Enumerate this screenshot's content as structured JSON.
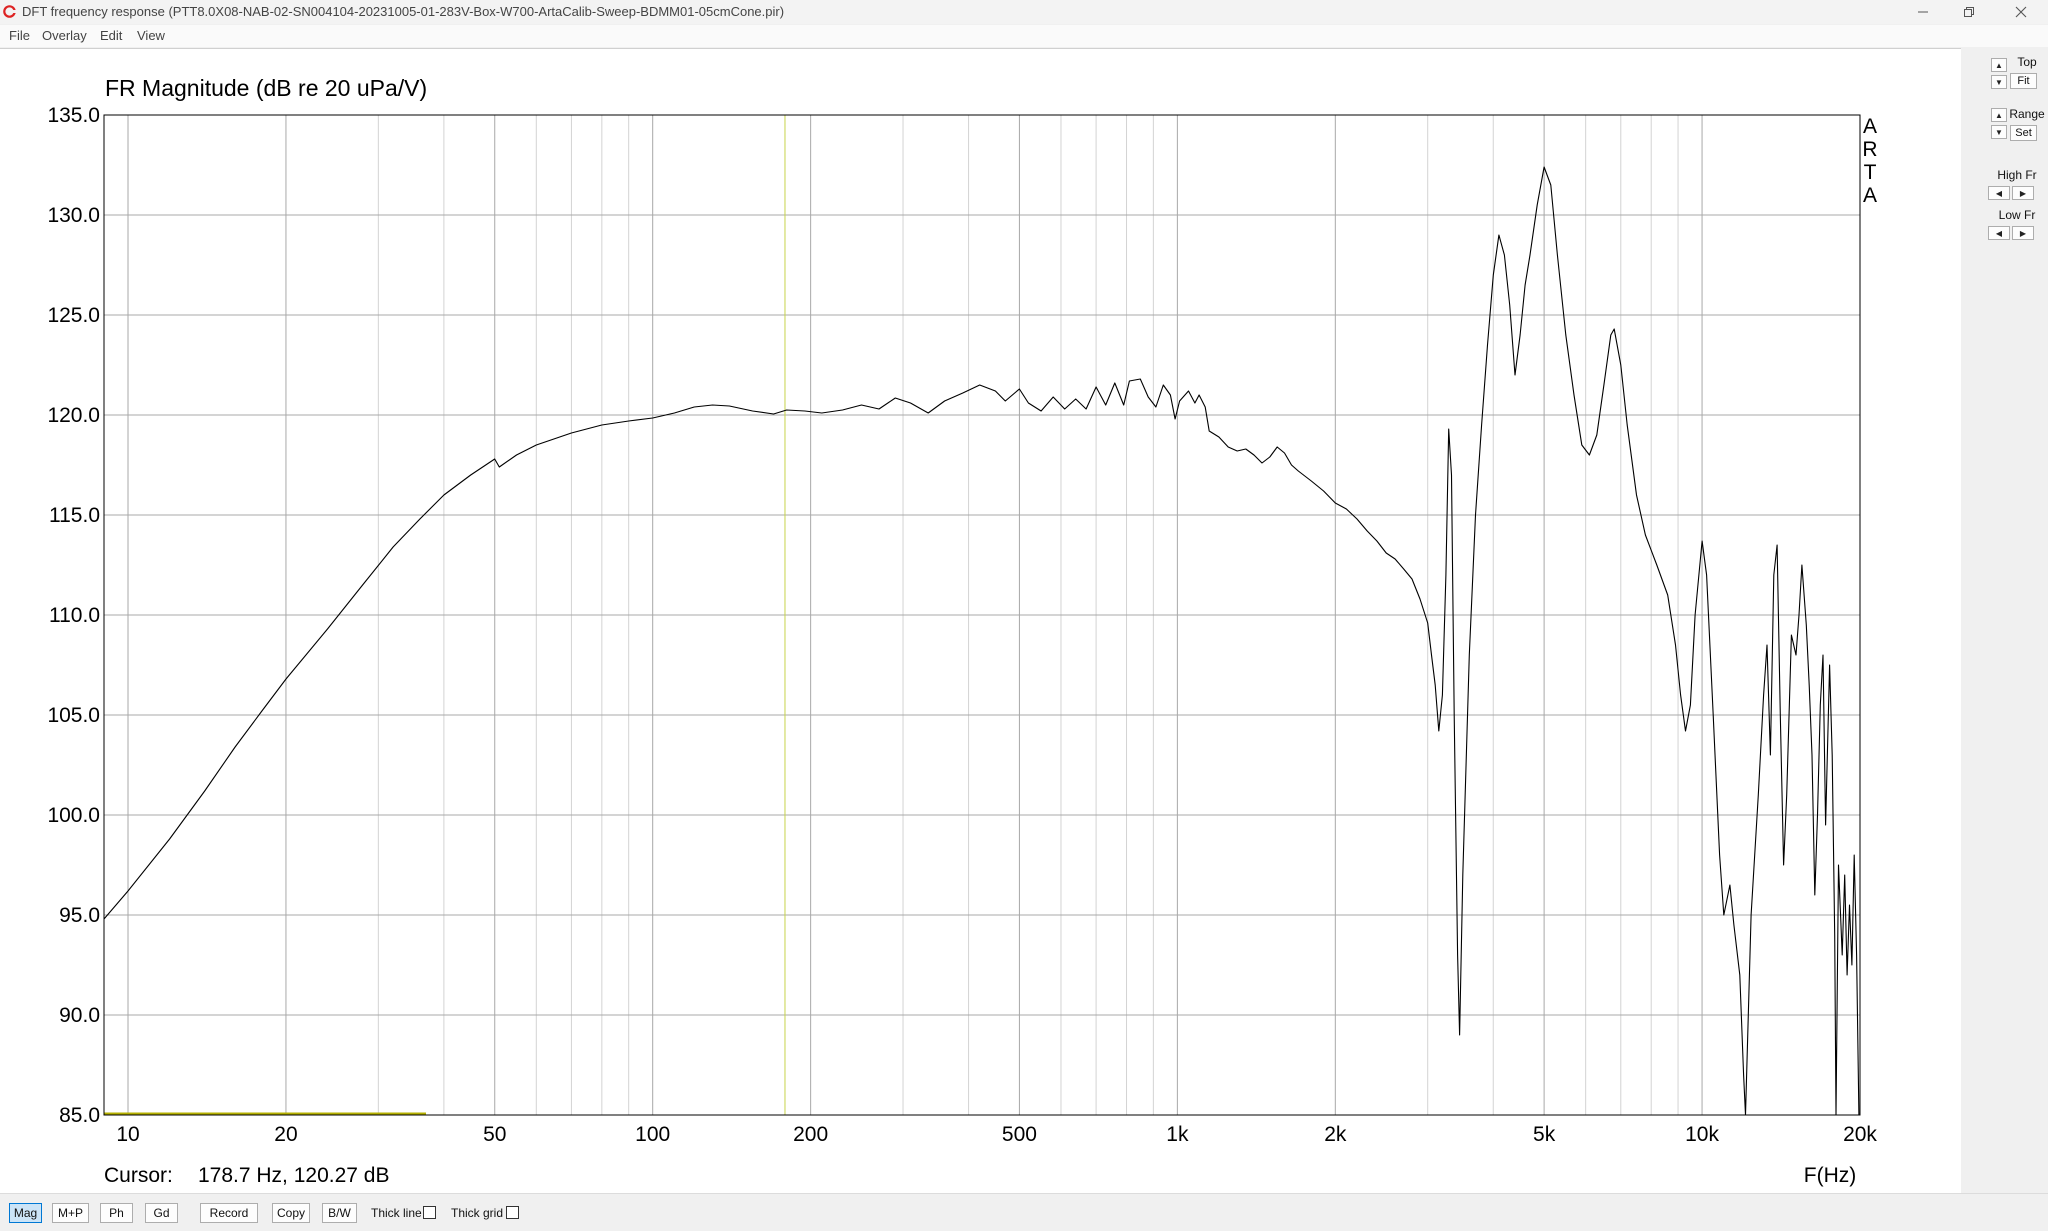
{
  "window": {
    "title": "DFT frequency response (PTT8.0X08-NAB-02-SN004104-20231005-01-283V-Box-W700-ArtaCalib-Sweep-BDMM01-05cmCone.pir)"
  },
  "menu": {
    "file": "File",
    "overlay": "Overlay",
    "edit": "Edit",
    "view": "View"
  },
  "plot": {
    "corner_label": "A\nR\nT\nA",
    "cursor_label": "Cursor:",
    "cursor_value": "178.7 Hz, 120.27 dB"
  },
  "side": {
    "top_label": "Top",
    "fit_label": "Fit",
    "range_label": "Range",
    "set_label": "Set",
    "high_fr_label": "High Fr",
    "low_fr_label": "Low Fr"
  },
  "toolbar": {
    "mag": "Mag",
    "mp": "M+P",
    "ph": "Ph",
    "gd": "Gd",
    "record": "Record",
    "copy": "Copy",
    "bw": "B/W",
    "thick_line": "Thick line",
    "thick_grid": "Thick grid"
  },
  "chart_data": {
    "type": "line",
    "title": "FR Magnitude (dB re 20 uPa/V)",
    "xlabel": "F(Hz)",
    "ylabel": "",
    "x_scale": "log",
    "xlim": [
      9,
      20000
    ],
    "ylim": [
      85,
      135
    ],
    "x_ticks": [
      10,
      20,
      50,
      100,
      200,
      500,
      1000,
      2000,
      5000,
      10000,
      20000
    ],
    "x_tick_labels": [
      "10",
      "20",
      "50",
      "100",
      "200",
      "500",
      "1k",
      "2k",
      "5k",
      "10k",
      "20k"
    ],
    "y_ticks": [
      "85.0",
      "90.0",
      "95.0",
      "100.0",
      "105.0",
      "110.0",
      "115.0",
      "120.0",
      "125.0",
      "130.0",
      "135.0"
    ],
    "grid": true,
    "cursor": {
      "freq_hz": 178.7,
      "level_db": 120.27
    },
    "series": [
      {
        "color": "#000000",
        "points": [
          [
            9,
            94.8
          ],
          [
            10,
            96.2
          ],
          [
            12,
            98.8
          ],
          [
            14,
            101.2
          ],
          [
            16,
            103.4
          ],
          [
            18,
            105.2
          ],
          [
            20,
            106.8
          ],
          [
            24,
            109.3
          ],
          [
            28,
            111.5
          ],
          [
            32,
            113.4
          ],
          [
            36,
            114.8
          ],
          [
            40,
            116.0
          ],
          [
            45,
            117.0
          ],
          [
            50,
            117.8
          ],
          [
            51,
            117.4
          ],
          [
            55,
            118.0
          ],
          [
            60,
            118.5
          ],
          [
            70,
            119.1
          ],
          [
            80,
            119.5
          ],
          [
            90,
            119.7
          ],
          [
            100,
            119.85
          ],
          [
            110,
            120.1
          ],
          [
            120,
            120.4
          ],
          [
            130,
            120.5
          ],
          [
            140,
            120.45
          ],
          [
            155,
            120.2
          ],
          [
            170,
            120.05
          ],
          [
            180,
            120.25
          ],
          [
            195,
            120.2
          ],
          [
            210,
            120.1
          ],
          [
            230,
            120.25
          ],
          [
            250,
            120.5
          ],
          [
            270,
            120.3
          ],
          [
            290,
            120.85
          ],
          [
            310,
            120.6
          ],
          [
            335,
            120.1
          ],
          [
            360,
            120.7
          ],
          [
            390,
            121.1
          ],
          [
            420,
            121.5
          ],
          [
            450,
            121.2
          ],
          [
            470,
            120.7
          ],
          [
            500,
            121.3
          ],
          [
            520,
            120.6
          ],
          [
            550,
            120.2
          ],
          [
            580,
            120.9
          ],
          [
            610,
            120.3
          ],
          [
            640,
            120.8
          ],
          [
            670,
            120.3
          ],
          [
            700,
            121.4
          ],
          [
            730,
            120.5
          ],
          [
            760,
            121.6
          ],
          [
            790,
            120.5
          ],
          [
            810,
            121.7
          ],
          [
            850,
            121.8
          ],
          [
            880,
            120.9
          ],
          [
            910,
            120.4
          ],
          [
            940,
            121.5
          ],
          [
            970,
            121.0
          ],
          [
            990,
            119.8
          ],
          [
            1010,
            120.7
          ],
          [
            1050,
            121.2
          ],
          [
            1080,
            120.6
          ],
          [
            1100,
            121.0
          ],
          [
            1130,
            120.4
          ],
          [
            1150,
            119.2
          ],
          [
            1200,
            118.9
          ],
          [
            1250,
            118.4
          ],
          [
            1300,
            118.2
          ],
          [
            1350,
            118.3
          ],
          [
            1400,
            118.0
          ],
          [
            1450,
            117.6
          ],
          [
            1500,
            117.9
          ],
          [
            1550,
            118.4
          ],
          [
            1600,
            118.1
          ],
          [
            1650,
            117.5
          ],
          [
            1700,
            117.2
          ],
          [
            1800,
            116.7
          ],
          [
            1900,
            116.2
          ],
          [
            2000,
            115.6
          ],
          [
            2100,
            115.3
          ],
          [
            2200,
            114.8
          ],
          [
            2300,
            114.2
          ],
          [
            2400,
            113.7
          ],
          [
            2500,
            113.1
          ],
          [
            2600,
            112.8
          ],
          [
            2700,
            112.3
          ],
          [
            2800,
            111.8
          ],
          [
            2900,
            110.8
          ],
          [
            3000,
            109.6
          ],
          [
            3050,
            108.0
          ],
          [
            3100,
            106.5
          ],
          [
            3150,
            104.2
          ],
          [
            3200,
            106.0
          ],
          [
            3250,
            112.0
          ],
          [
            3290,
            119.3
          ],
          [
            3330,
            117.0
          ],
          [
            3370,
            105.0
          ],
          [
            3420,
            93.0
          ],
          [
            3450,
            89.0
          ],
          [
            3500,
            97.0
          ],
          [
            3600,
            108.0
          ],
          [
            3700,
            115.0
          ],
          [
            3800,
            119.5
          ],
          [
            3900,
            123.5
          ],
          [
            4000,
            127.0
          ],
          [
            4100,
            129.0
          ],
          [
            4200,
            128.0
          ],
          [
            4300,
            125.5
          ],
          [
            4400,
            122.0
          ],
          [
            4500,
            124.0
          ],
          [
            4600,
            126.5
          ],
          [
            4700,
            128.0
          ],
          [
            4850,
            130.5
          ],
          [
            5000,
            132.4
          ],
          [
            5150,
            131.5
          ],
          [
            5300,
            128.0
          ],
          [
            5500,
            124.0
          ],
          [
            5700,
            121.0
          ],
          [
            5900,
            118.5
          ],
          [
            6100,
            118.0
          ],
          [
            6300,
            119.0
          ],
          [
            6500,
            121.5
          ],
          [
            6700,
            124.0
          ],
          [
            6800,
            124.3
          ],
          [
            7000,
            122.5
          ],
          [
            7200,
            119.5
          ],
          [
            7500,
            116.0
          ],
          [
            7800,
            114.0
          ],
          [
            8200,
            112.5
          ],
          [
            8600,
            111.0
          ],
          [
            8900,
            108.5
          ],
          [
            9100,
            106.0
          ],
          [
            9300,
            104.2
          ],
          [
            9500,
            105.5
          ],
          [
            9700,
            110.0
          ],
          [
            10000,
            113.7
          ],
          [
            10200,
            112.0
          ],
          [
            10500,
            105.0
          ],
          [
            10800,
            98.0
          ],
          [
            11000,
            95.0
          ],
          [
            11300,
            96.5
          ],
          [
            11500,
            94.5
          ],
          [
            11800,
            92.0
          ],
          [
            12000,
            87.0
          ],
          [
            12100,
            84.9
          ],
          [
            12400,
            95.0
          ],
          [
            12800,
            101.0
          ],
          [
            13100,
            106.0
          ],
          [
            13300,
            108.5
          ],
          [
            13500,
            103.0
          ],
          [
            13700,
            112.0
          ],
          [
            13900,
            113.5
          ],
          [
            14100,
            105.0
          ],
          [
            14300,
            97.5
          ],
          [
            14500,
            101.0
          ],
          [
            14800,
            109.0
          ],
          [
            15100,
            108.0
          ],
          [
            15300,
            110.0
          ],
          [
            15500,
            112.5
          ],
          [
            15800,
            109.5
          ],
          [
            16000,
            106.5
          ],
          [
            16200,
            103.0
          ],
          [
            16400,
            96.0
          ],
          [
            16600,
            100.0
          ],
          [
            16800,
            105.5
          ],
          [
            17000,
            108.0
          ],
          [
            17200,
            99.5
          ],
          [
            17500,
            107.5
          ],
          [
            17700,
            103.0
          ],
          [
            17900,
            94.0
          ],
          [
            18000,
            84.9
          ],
          [
            18200,
            97.5
          ],
          [
            18500,
            93.0
          ],
          [
            18700,
            97.0
          ],
          [
            18900,
            92.0
          ],
          [
            19100,
            95.5
          ],
          [
            19300,
            92.5
          ],
          [
            19500,
            98.0
          ],
          [
            19700,
            93.0
          ],
          [
            19900,
            84.9
          ]
        ]
      }
    ]
  }
}
